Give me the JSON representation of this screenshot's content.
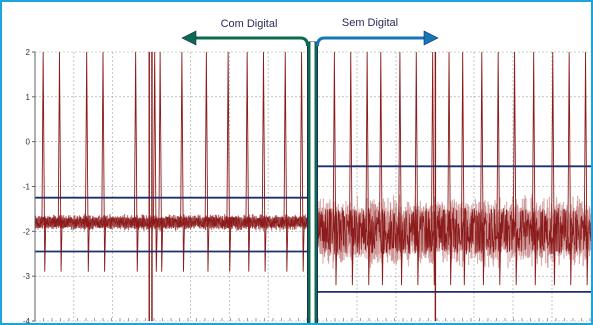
{
  "chart_data": {
    "type": "line",
    "title": "",
    "xlabel": "",
    "ylabel": "",
    "ylim": [
      -4,
      2
    ],
    "yticks": [
      2,
      1,
      0,
      -1,
      -2,
      -3,
      -4
    ],
    "ytick_labels": [
      "2",
      "1",
      "0",
      "-1",
      "-2",
      "-3",
      "-4"
    ],
    "grid": true,
    "x_panel_range": [
      0,
      100
    ],
    "colors": {
      "signal": "#8b1a1a",
      "signal_fill": "#c98a8a",
      "reference_line": "#1f2f6b",
      "divider": "#0c6b4e",
      "divider_edge": "#1c2c5c",
      "arrow_com": "#0c6b4e",
      "arrow_sem": "#1577b8",
      "frame": "#1ea4dc",
      "grid": "#a0a0a0"
    },
    "panels": [
      {
        "name": "Com Digital",
        "annotation": "Com Digital",
        "arrow_direction": "left",
        "baseline": -1.8,
        "noise_amplitude": 0.15,
        "reference_lines": [
          -1.25,
          -2.45
        ],
        "spikes_x": [
          3,
          9,
          19,
          25,
          37,
          44,
          46,
          54,
          63,
          71,
          78,
          84,
          92,
          98
        ],
        "spike_peak": 2.0,
        "spike_trough": -2.9,
        "dropouts_x": [
          42,
          43
        ]
      },
      {
        "name": "Sem Digital",
        "annotation": "Sem Digital",
        "arrow_direction": "right",
        "baseline": -2.0,
        "noise_amplitude": 0.65,
        "reference_lines": [
          -0.55,
          -3.35
        ],
        "spikes_x": [
          6,
          12,
          18,
          23,
          30,
          36,
          42,
          48,
          53,
          60,
          66,
          72,
          79,
          86,
          92,
          98
        ],
        "spike_peak": 2.0,
        "spike_trough": -3.2,
        "dropouts_x": [
          43
        ]
      }
    ]
  }
}
